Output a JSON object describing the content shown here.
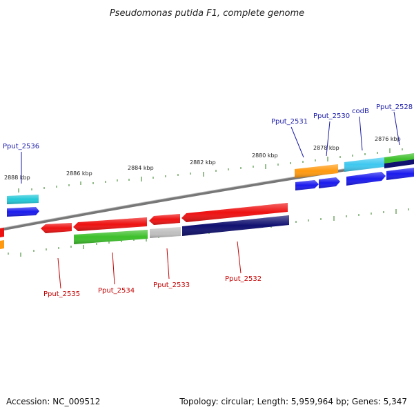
{
  "title": "Pseudomonas putida F1, complete genome",
  "footer": {
    "accession": "Accession: NC_009512",
    "summary": "Topology: circular; Length: 5,959,964 bp; Genes: 5,347"
  },
  "ruler_labels": [
    "2888 kbp",
    "2886 kbp",
    "2884 kbp",
    "2882 kbp",
    "2880 kbp",
    "2878 kbp",
    "2876 kbp"
  ],
  "genes_top": [
    "Pput_2536",
    "Pput_2531",
    "Pput_2530",
    "codB",
    "Pput_2528"
  ],
  "genes_bottom": [
    "Pput_2535",
    "Pput_2534",
    "Pput_2533",
    "Pput_2532"
  ],
  "colors": {
    "backbone": "#888888",
    "tick": "#2e7d1e",
    "red": "#ee1111",
    "blue": "#1a1aee",
    "navy": "#101070",
    "green": "#3cbf2a",
    "orange": "#ff9a10",
    "cyan": "#22c8d8",
    "light_blue": "#3fc8f0",
    "gray": "#c0c0c0"
  }
}
